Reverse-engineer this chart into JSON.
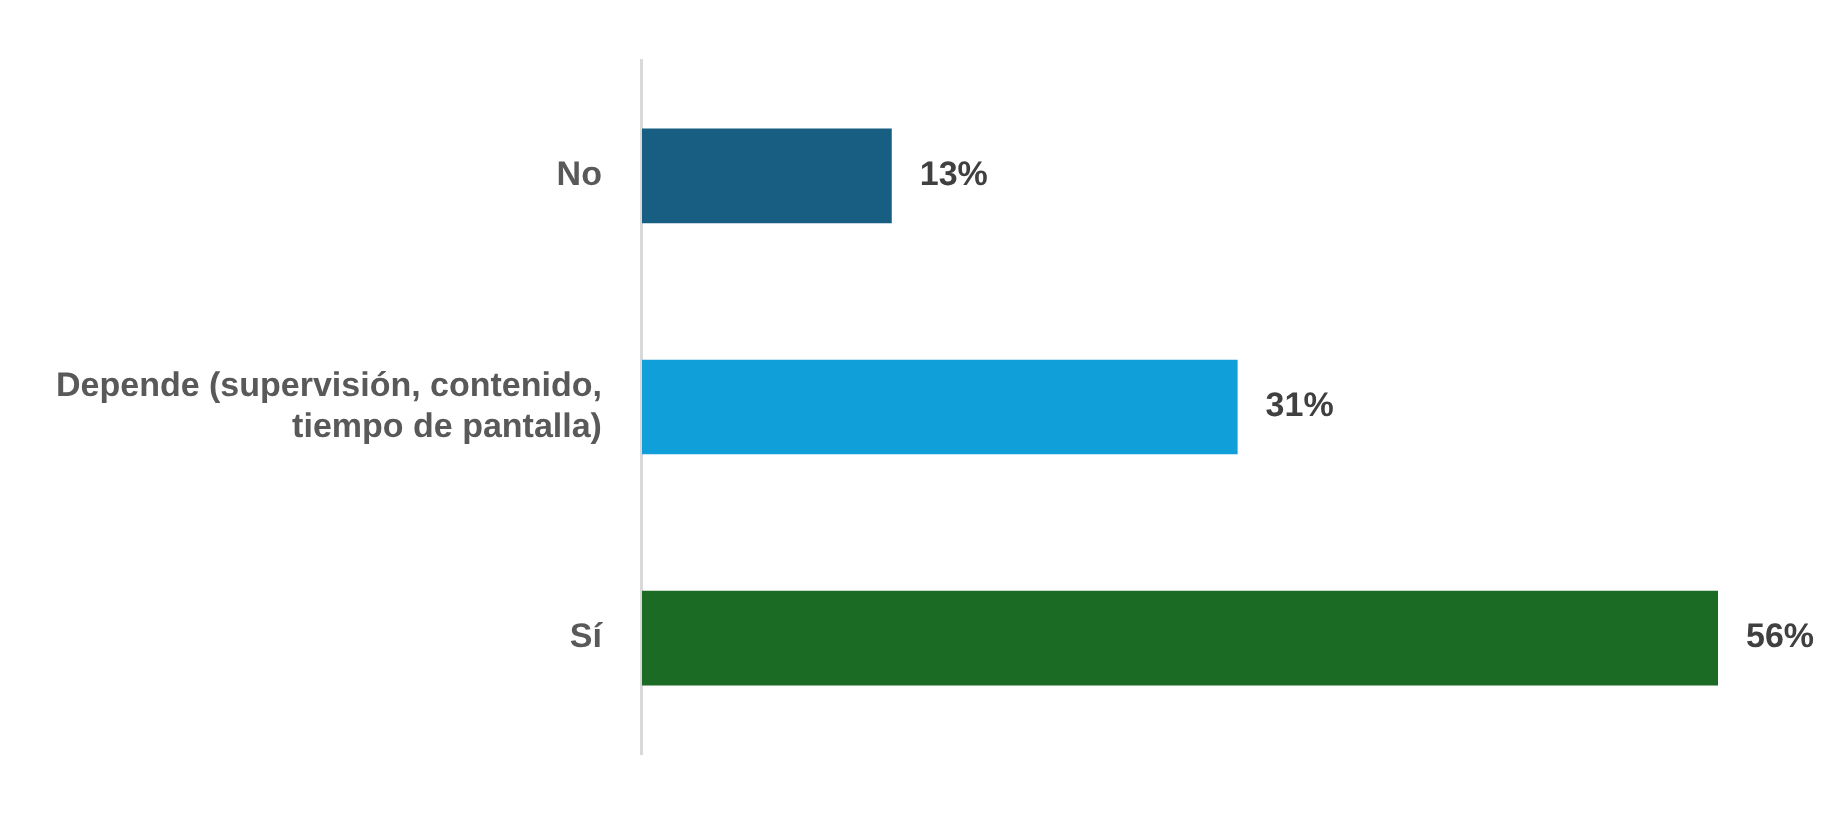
{
  "chart_data": {
    "type": "bar",
    "orientation": "horizontal",
    "categories": [
      "No",
      "Depende (supervisión, contenido, tiempo de pantalla)",
      "Sí"
    ],
    "values": [
      13,
      31,
      56
    ],
    "colors": [
      "#175e82",
      "#119fd9",
      "#1b6b25"
    ],
    "value_labels": [
      "13%",
      "31%",
      "56%"
    ],
    "legend": false
  }
}
